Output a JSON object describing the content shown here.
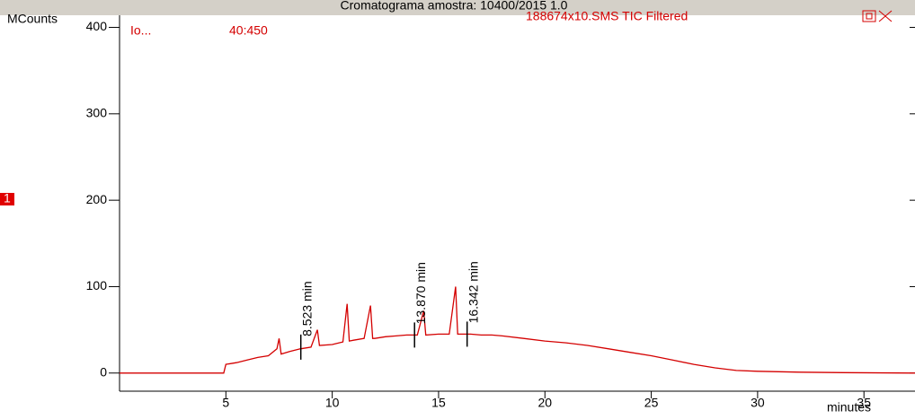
{
  "chart_data": {
    "type": "line",
    "title": "Cromatograma amostra: 10400/2015 1.0",
    "y_label": "MCounts",
    "x_label": "minutes",
    "trace_label": "Io...",
    "mass_range": "40:450",
    "trace_name": "188674x10.SMS TIC Filtered",
    "segment_marker": "1",
    "x": [
      0,
      4.9,
      5.0,
      5.5,
      6,
      6.5,
      7,
      7.4,
      7.5,
      7.6,
      8,
      8.5,
      9,
      9.3,
      9.4,
      10,
      10.5,
      10.7,
      10.8,
      11,
      11.5,
      11.8,
      11.9,
      12,
      12.5,
      13,
      13.5,
      14,
      14.3,
      14.4,
      15,
      15.5,
      15.8,
      15.9,
      16,
      16.5,
      17,
      17.5,
      18,
      19,
      20,
      21,
      22,
      23,
      24,
      25,
      26,
      27,
      28,
      29,
      30,
      32,
      34,
      37.4
    ],
    "series": [
      {
        "name": "188674x10.SMS TIC Filtered",
        "color": "#d40000",
        "values": [
          0,
          0,
          10,
          12,
          15,
          18,
          20,
          28,
          40,
          22,
          25,
          28,
          30,
          50,
          32,
          33,
          36,
          80,
          37,
          38,
          40,
          78,
          40,
          40,
          42,
          43,
          44,
          44,
          72,
          44,
          45,
          45,
          100,
          45,
          45,
          45,
          44,
          44,
          43,
          40,
          37,
          35,
          32,
          28,
          24,
          20,
          15,
          10,
          6,
          3,
          2,
          1,
          0.5,
          0
        ]
      }
    ],
    "annotations": [
      {
        "text": "8.523 min",
        "x": 8.523,
        "y": 30
      },
      {
        "text": "13.870 min",
        "x": 13.87,
        "y": 44
      },
      {
        "text": "16.342 min",
        "x": 16.342,
        "y": 45
      }
    ],
    "xlim": [
      0,
      37.4
    ],
    "ylim": [
      -21,
      413
    ],
    "xticks": [
      5,
      10,
      15,
      20,
      25,
      30,
      35
    ],
    "yticks": [
      0,
      100,
      200,
      300,
      400
    ]
  }
}
